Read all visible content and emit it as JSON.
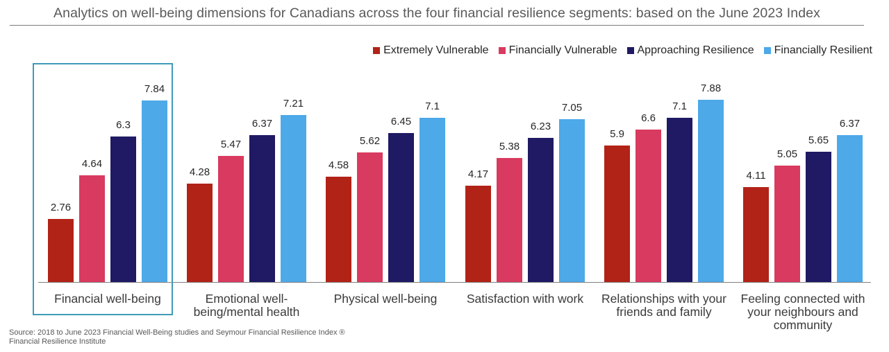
{
  "title": "Analytics on well-being dimensions for Canadians across the four financial resilience segments: based on the June 2023 Index",
  "source": {
    "line1": "Source: 2018 to June 2023 Financial Well-Being studies and Seymour Financial Resilience Index ®",
    "line2": "Financial Resilience Institute"
  },
  "chart_data": {
    "type": "bar",
    "title": "Analytics on well-being dimensions for Canadians across the four financial resilience segments: based on the June 2023 Index",
    "categories": [
      "Financial well-being",
      "Emotional well-being/mental health",
      "Physical well-being",
      "Satisfaction with work",
      "Relationships with your friends and family",
      "Feeling connected with your neighbours and community"
    ],
    "category_label_lines": [
      [
        "Financial well-being"
      ],
      [
        "Emotional well-",
        "being/mental health"
      ],
      [
        "Physical well-being"
      ],
      [
        "Satisfaction with work"
      ],
      [
        "Relationships with your",
        "friends and family"
      ],
      [
        "Feeling connected with",
        "your neighbours and",
        "community"
      ]
    ],
    "series": [
      {
        "name": "Extremely Vulnerable",
        "color": "#b22317",
        "values": [
          2.76,
          4.28,
          4.58,
          4.17,
          5.9,
          4.11
        ]
      },
      {
        "name": "Financially Vulnerable",
        "color": "#d93a5f",
        "values": [
          4.64,
          5.47,
          5.62,
          5.38,
          6.6,
          5.05
        ]
      },
      {
        "name": "Approaching Resilience",
        "color": "#1f1a63",
        "values": [
          6.3,
          6.37,
          6.45,
          6.23,
          7.1,
          5.65
        ]
      },
      {
        "name": "Financially Resilient",
        "color": "#4da9e8",
        "values": [
          7.84,
          7.21,
          7.1,
          7.05,
          7.88,
          6.37
        ]
      }
    ],
    "ylim": [
      0,
      10
    ],
    "grid": false,
    "value_labels": true,
    "legend_position": "top-right",
    "highlight": {
      "category": "Financial well-being",
      "box_color": "#3f9ab9"
    }
  }
}
